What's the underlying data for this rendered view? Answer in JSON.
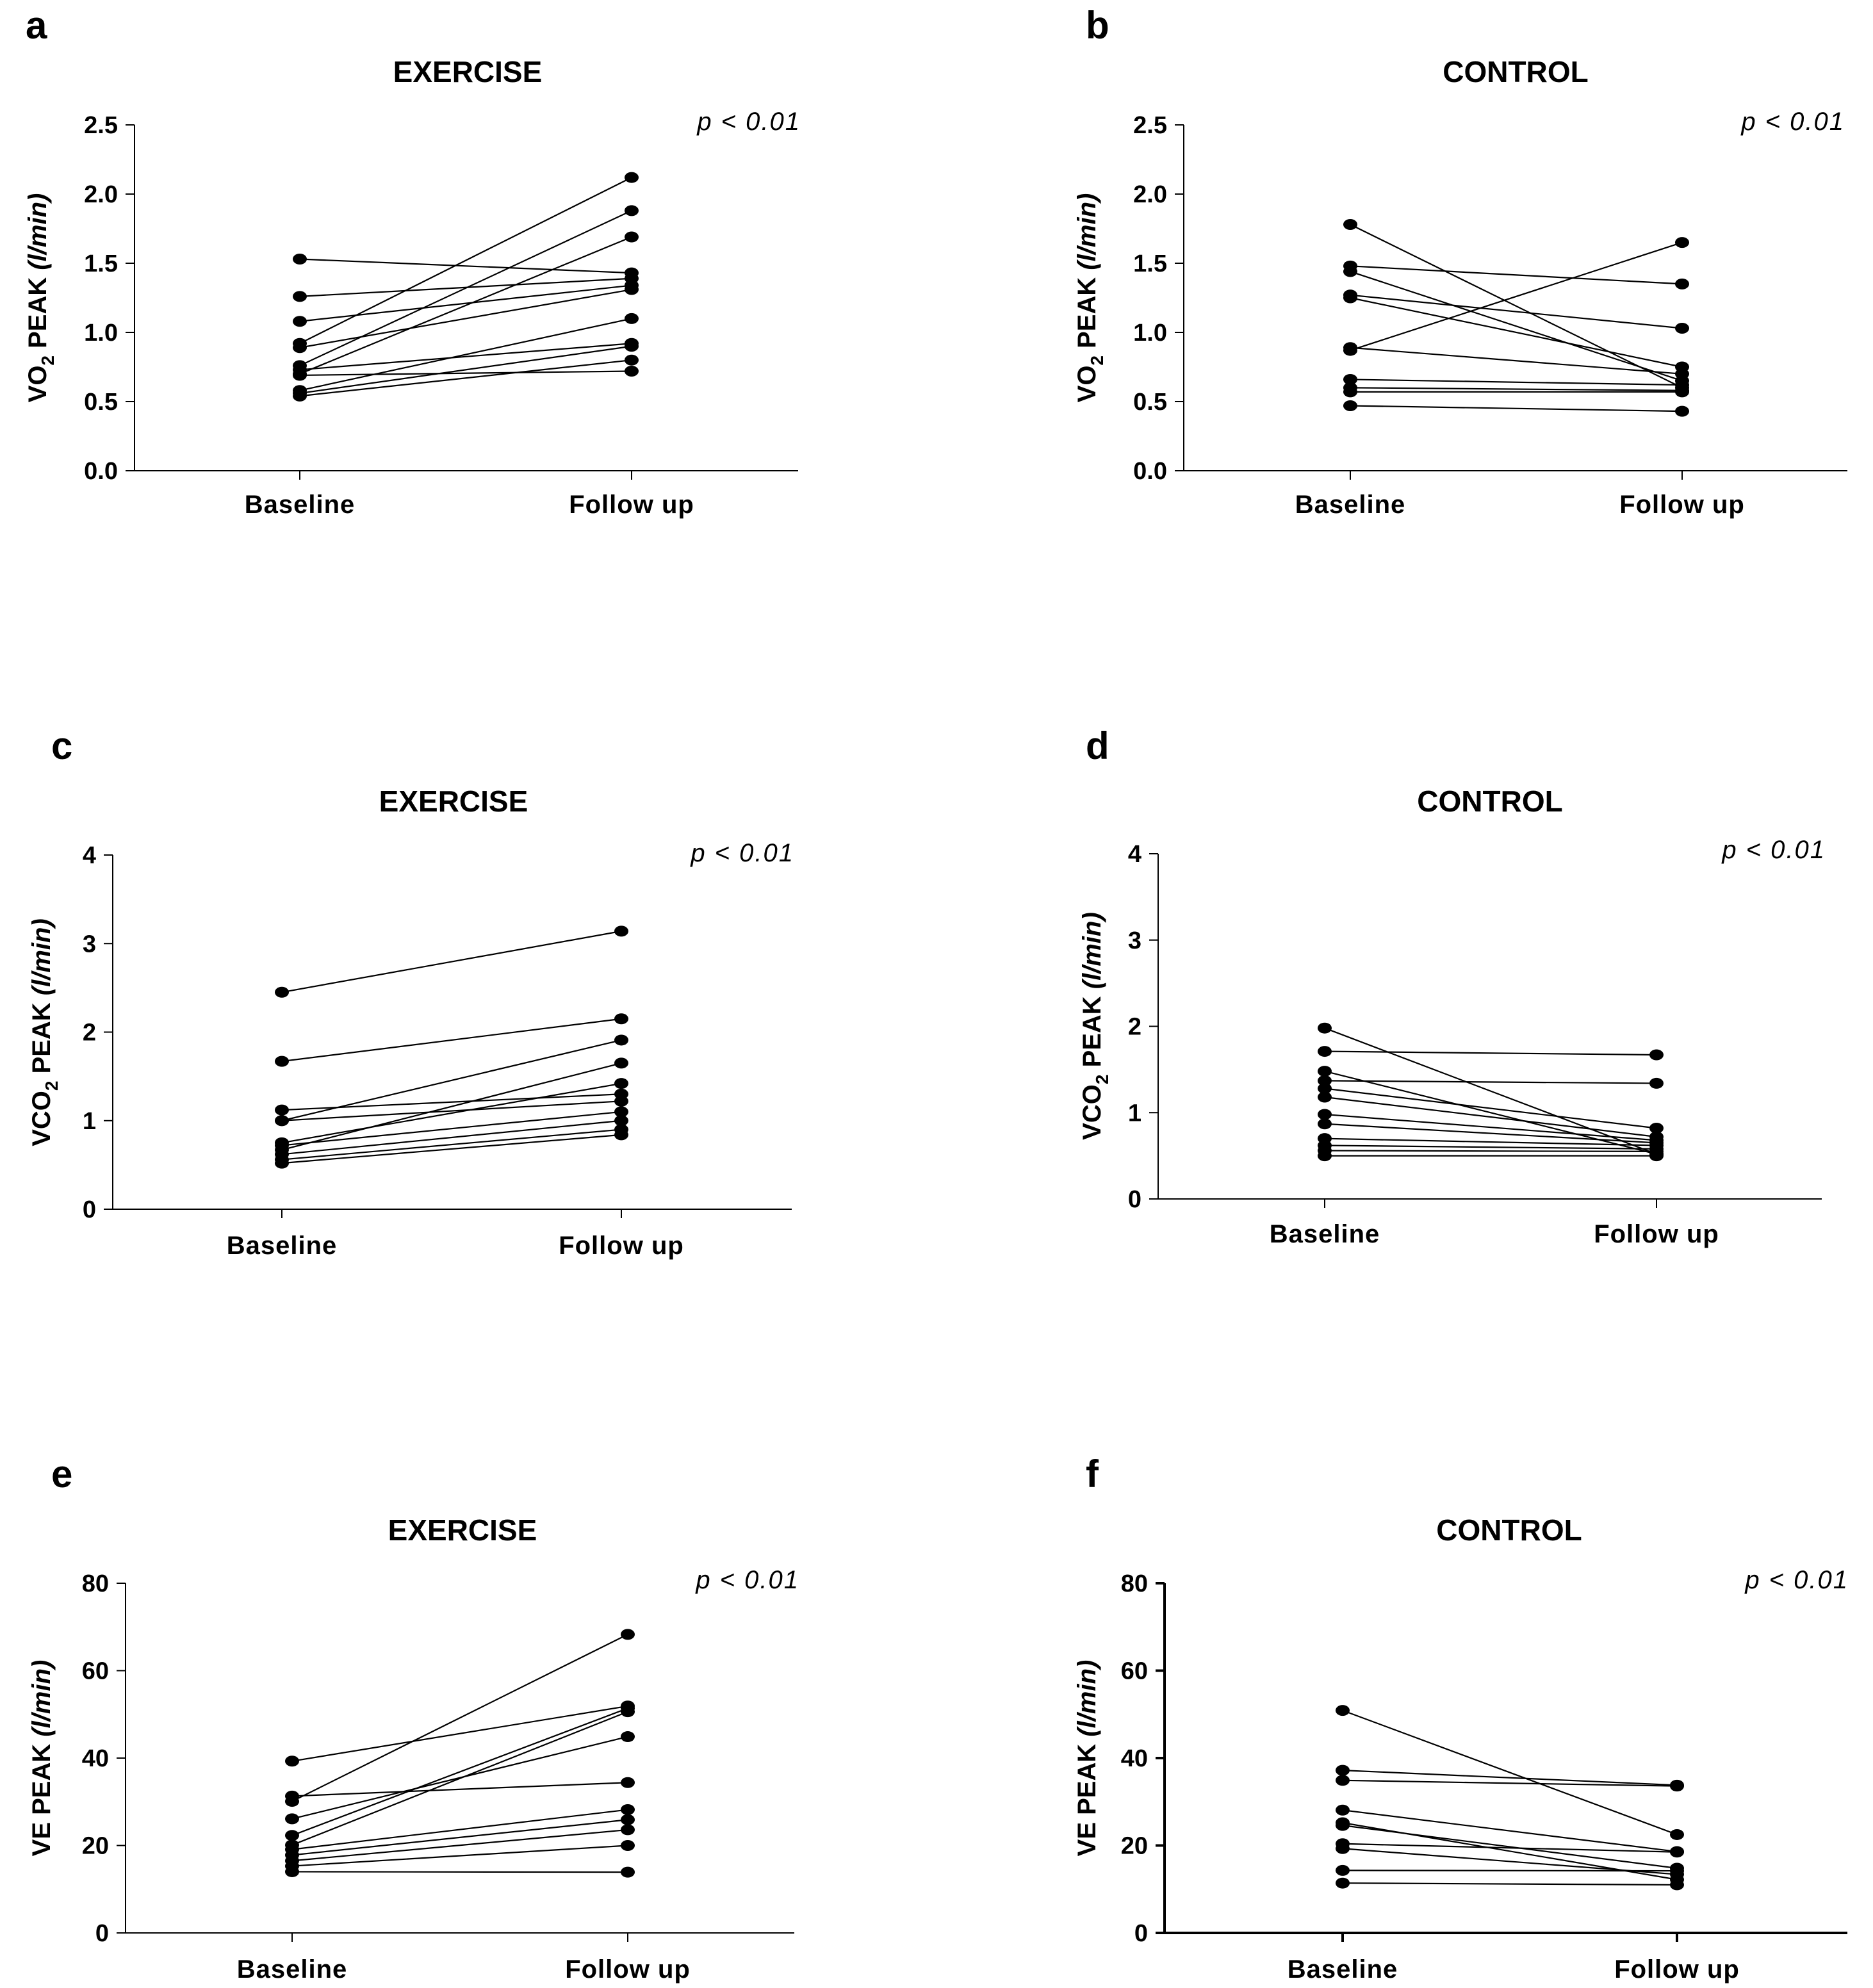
{
  "chart_data": [
    {
      "panel": "a",
      "title": "EXERCISE",
      "type": "line",
      "annotation": "p < 0.01",
      "categories": [
        "Baseline",
        "Follow up"
      ],
      "ylabel": {
        "main": "VO",
        "sub": "2",
        "rest": " PEAK ",
        "unit": "(l/min)"
      },
      "ylim": [
        0,
        2.5
      ],
      "yticks": [
        "0.0",
        "0.5",
        "1.0",
        "1.5",
        "2.0",
        "2.5"
      ],
      "series": [
        {
          "values": [
            1.53,
            1.43
          ]
        },
        {
          "values": [
            1.26,
            1.39
          ]
        },
        {
          "values": [
            1.08,
            1.34
          ]
        },
        {
          "values": [
            0.92,
            2.12
          ]
        },
        {
          "values": [
            0.89,
            1.31
          ]
        },
        {
          "values": [
            0.76,
            1.88
          ]
        },
        {
          "values": [
            0.73,
            0.92
          ]
        },
        {
          "values": [
            0.7,
            1.69
          ]
        },
        {
          "values": [
            0.69,
            0.72
          ]
        },
        {
          "values": [
            0.58,
            1.1
          ]
        },
        {
          "values": [
            0.56,
            0.9
          ]
        },
        {
          "values": [
            0.54,
            0.8
          ]
        }
      ]
    },
    {
      "panel": "b",
      "title": "CONTROL",
      "type": "line",
      "annotation": "p < 0.01",
      "categories": [
        "Baseline",
        "Follow up"
      ],
      "ylabel": {
        "main": "VO",
        "sub": "2",
        "rest": " PEAK ",
        "unit": "(l/min)"
      },
      "ylim": [
        0,
        2.5
      ],
      "yticks": [
        "0.0",
        "0.5",
        "1.0",
        "1.5",
        "2.0",
        "2.5"
      ],
      "series": [
        {
          "values": [
            1.78,
            0.6
          ]
        },
        {
          "values": [
            1.48,
            1.35
          ]
        },
        {
          "values": [
            1.44,
            0.65
          ]
        },
        {
          "values": [
            1.27,
            1.03
          ]
        },
        {
          "values": [
            1.25,
            0.75
          ]
        },
        {
          "values": [
            0.89,
            0.7
          ]
        },
        {
          "values": [
            0.87,
            1.65
          ]
        },
        {
          "values": [
            0.66,
            0.62
          ]
        },
        {
          "values": [
            0.6,
            0.58
          ]
        },
        {
          "values": [
            0.57,
            0.57
          ]
        },
        {
          "values": [
            0.47,
            0.43
          ]
        }
      ]
    },
    {
      "panel": "c",
      "title": "EXERCISE",
      "type": "line",
      "annotation": "p < 0.01",
      "categories": [
        "Baseline",
        "Follow up"
      ],
      "ylabel": {
        "main": "VCO",
        "sub": "2",
        "rest": " PEAK ",
        "unit": "(l/min)"
      },
      "ylim": [
        0,
        4
      ],
      "yticks": [
        "0",
        "1",
        "2",
        "3",
        "4"
      ],
      "series": [
        {
          "values": [
            2.45,
            3.14
          ]
        },
        {
          "values": [
            1.67,
            2.15
          ]
        },
        {
          "values": [
            1.12,
            1.3
          ]
        },
        {
          "values": [
            1.0,
            1.91
          ]
        },
        {
          "values": [
            1.0,
            1.22
          ]
        },
        {
          "values": [
            0.75,
            1.42
          ]
        },
        {
          "values": [
            0.72,
            1.1
          ]
        },
        {
          "values": [
            0.67,
            1.65
          ]
        },
        {
          "values": [
            0.62,
            1.0
          ]
        },
        {
          "values": [
            0.56,
            0.9
          ]
        },
        {
          "values": [
            0.52,
            0.84
          ]
        }
      ]
    },
    {
      "panel": "d",
      "title": "CONTROL",
      "type": "line",
      "annotation": "p < 0.01",
      "categories": [
        "Baseline",
        "Follow up"
      ],
      "ylabel": {
        "main": "VCO",
        "sub": "2",
        "rest": " PEAK ",
        "unit": "(l/min)"
      },
      "ylim": [
        0,
        4
      ],
      "yticks": [
        "0",
        "1",
        "2",
        "3",
        "4"
      ],
      "series": [
        {
          "values": [
            1.98,
            0.52
          ]
        },
        {
          "values": [
            1.71,
            1.67
          ]
        },
        {
          "values": [
            1.48,
            0.52
          ]
        },
        {
          "values": [
            1.37,
            1.34
          ]
        },
        {
          "values": [
            1.28,
            0.82
          ]
        },
        {
          "values": [
            1.18,
            0.72
          ]
        },
        {
          "values": [
            0.98,
            0.68
          ]
        },
        {
          "values": [
            0.87,
            0.65
          ]
        },
        {
          "values": [
            0.7,
            0.62
          ]
        },
        {
          "values": [
            0.62,
            0.58
          ]
        },
        {
          "values": [
            0.56,
            0.55
          ]
        },
        {
          "values": [
            0.5,
            0.5
          ]
        }
      ]
    },
    {
      "panel": "e",
      "title": "EXERCISE",
      "type": "line",
      "annotation": "p < 0.01",
      "categories": [
        "Baseline",
        "Follow up"
      ],
      "ylabel": {
        "main": "VE",
        "sub": "",
        "rest": " PEAK ",
        "unit": "(l/min)"
      },
      "ylim": [
        0,
        80
      ],
      "yticks": [
        "0",
        "20",
        "40",
        "60",
        "80"
      ],
      "series": [
        {
          "values": [
            39.3,
            51.9
          ]
        },
        {
          "values": [
            31.3,
            34.4
          ]
        },
        {
          "values": [
            30.1,
            68.3
          ]
        },
        {
          "values": [
            26.1,
            44.9
          ]
        },
        {
          "values": [
            22.3,
            51.4
          ]
        },
        {
          "values": [
            20.1,
            50.6
          ]
        },
        {
          "values": [
            19.1,
            28.2
          ]
        },
        {
          "values": [
            17.8,
            25.9
          ]
        },
        {
          "values": [
            16.5,
            23.6
          ]
        },
        {
          "values": [
            15.3,
            20.0
          ]
        },
        {
          "values": [
            14.0,
            13.9
          ]
        }
      ]
    },
    {
      "panel": "f",
      "title": "CONTROL",
      "type": "line",
      "annotation": "p < 0.01",
      "categories": [
        "Baseline",
        "Follow up"
      ],
      "ylabel": {
        "main": "VE",
        "sub": "",
        "rest": " PEAK ",
        "unit": "(l/min)"
      },
      "ylim": [
        0,
        80
      ],
      "yticks": [
        "0",
        "20",
        "40",
        "60",
        "80"
      ],
      "series": [
        {
          "values": [
            50.9,
            22.5
          ]
        },
        {
          "values": [
            37.2,
            33.8
          ]
        },
        {
          "values": [
            34.9,
            33.6
          ]
        },
        {
          "values": [
            28.1,
            18.6
          ]
        },
        {
          "values": [
            25.2,
            12.2
          ]
        },
        {
          "values": [
            24.6,
            14.8
          ]
        },
        {
          "values": [
            20.4,
            18.5
          ]
        },
        {
          "values": [
            19.3,
            13.4
          ]
        },
        {
          "values": [
            14.3,
            14.2
          ]
        },
        {
          "values": [
            11.4,
            11.0
          ]
        }
      ]
    }
  ]
}
